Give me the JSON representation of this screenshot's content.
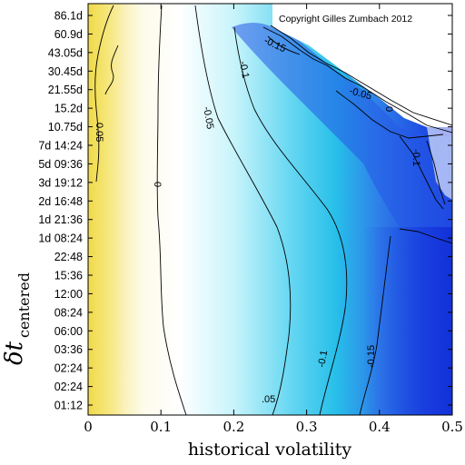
{
  "chart_data": {
    "type": "heatmap",
    "copyright": "Copyright Gilles Zumbach 2012",
    "xlabel": "historical volatility",
    "ylabel_main": "δt",
    "ylabel_sub": "centered",
    "xlim": [
      0,
      0.5
    ],
    "x_ticks": [
      "0",
      "0.1",
      "0.2",
      "0.3",
      "0.4",
      "0.5"
    ],
    "y_ticks": [
      "86.1d",
      "60.9d",
      "43.05d",
      "30.45d",
      "21.55d",
      "15.2d",
      "10.75d",
      "7d 14:24",
      "5d 09:36",
      "3d 19:12",
      "2d 16:48",
      "1d 21:36",
      "1d 08:24",
      "22:48",
      "15:36",
      "12:00",
      "08:24",
      "06:00",
      "03:36",
      "02:24",
      "02:24",
      "01:12"
    ],
    "colors": {
      "high": "#f5e76a",
      "zero": "#ffffff",
      "mid_negative": "#22c6ea",
      "low": "#1a3ce0"
    },
    "contours": [
      {
        "label": "0.05",
        "level": 0.05
      },
      {
        "label": "0",
        "level": 0
      },
      {
        "label": "-0.05",
        "level": -0.05
      },
      {
        "label": "-0.1",
        "level": -0.1
      },
      {
        "label": "-0.15",
        "level": -0.15
      }
    ],
    "contour_labels": [
      {
        "text": "0.05"
      },
      {
        "text": "0"
      },
      {
        "text": "-0.05"
      },
      {
        "text": "-0.1"
      },
      {
        "text": "-0.15"
      },
      {
        "text": "-0.05"
      },
      {
        "text": "0"
      },
      {
        "text": "-0.1"
      },
      {
        "text": "-0.1"
      },
      {
        "text": "-0.15"
      },
      {
        "text": ".05"
      }
    ]
  }
}
